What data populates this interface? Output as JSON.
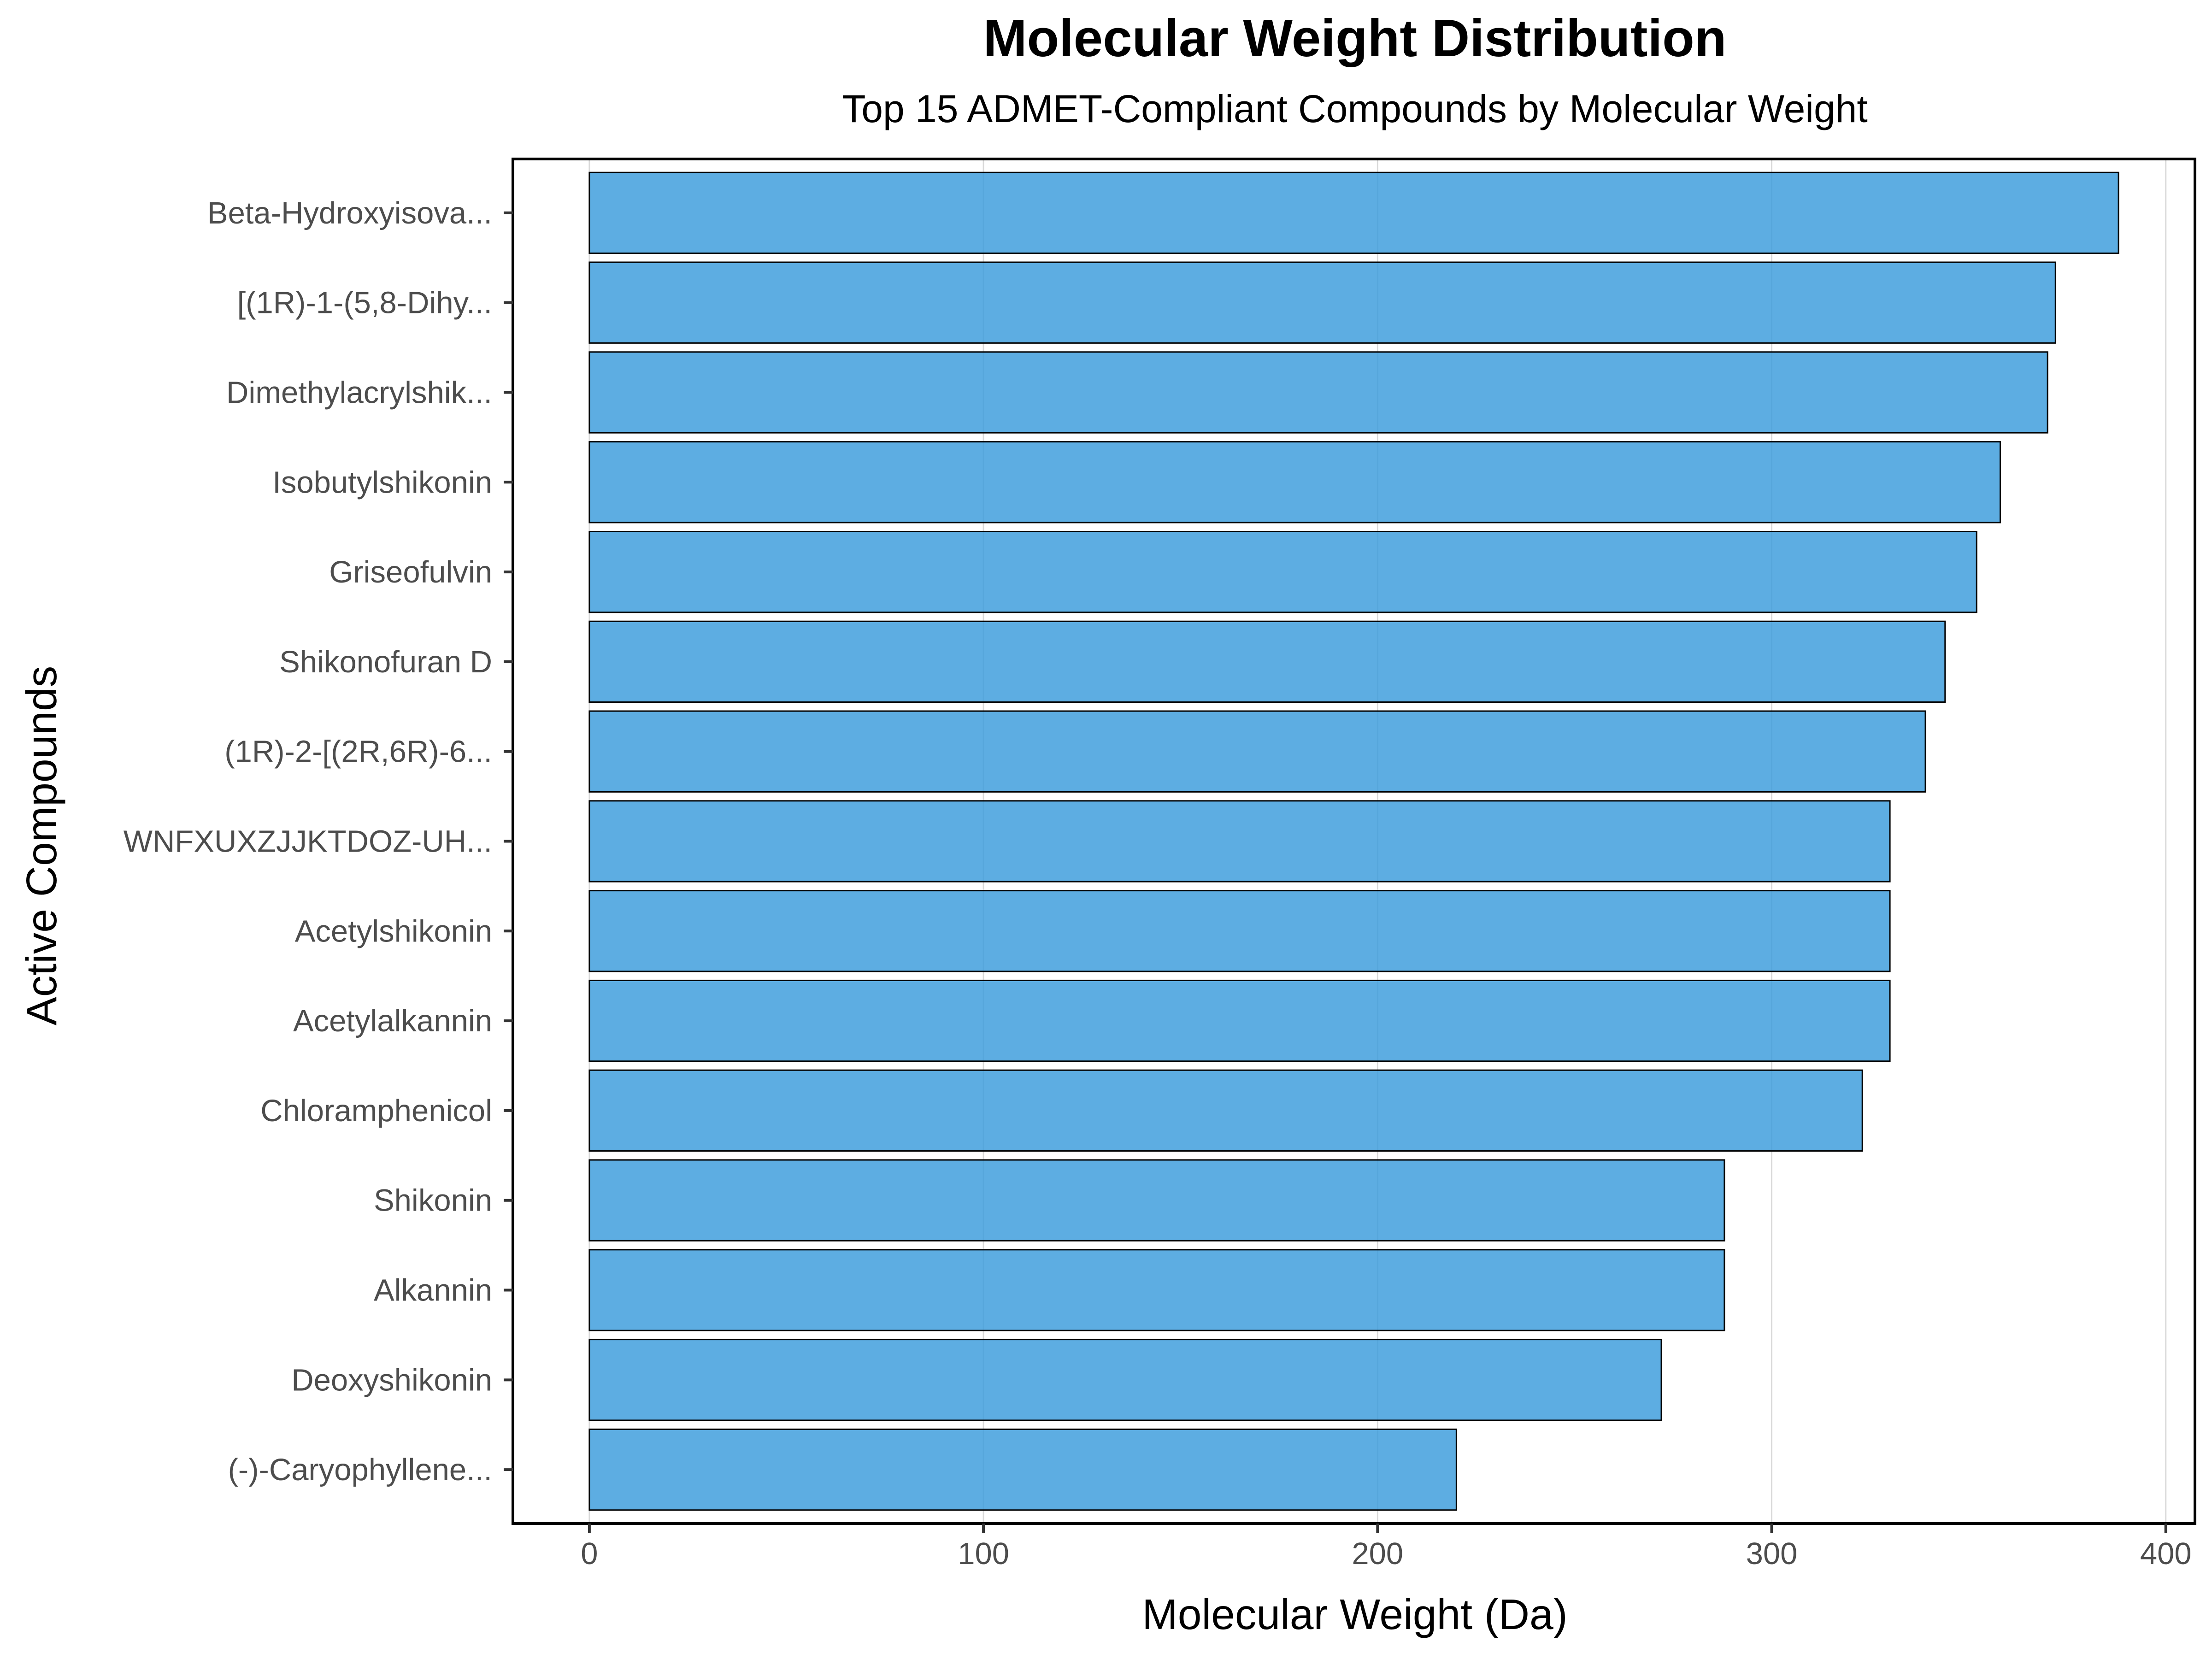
{
  "chart_data": {
    "type": "bar",
    "orientation": "horizontal",
    "title": "Molecular Weight Distribution",
    "subtitle": "Top 15 ADMET-Compliant Compounds by Molecular Weight",
    "xlabel": "Molecular Weight (Da)",
    "ylabel": "Active Compounds",
    "xlim": [
      -19.4,
      407.4
    ],
    "x_ticks": [
      0,
      100,
      200,
      300,
      400
    ],
    "grid": true,
    "legend": "none",
    "bar_color": "#3498db",
    "categories": [
      "Beta-Hydroxyisova...",
      "[(1R)-1-(5,8-Dihy...",
      "Dimethylacrylshik...",
      "Isobutylshikonin",
      "Griseofulvin",
      "Shikonofuran D",
      "(1R)-2-[(2R,6R)-6...",
      "WNFXUXZJJKTDOZ-UH...",
      "Acetylshikonin",
      "Acetylalkannin",
      "Chloramphenicol",
      "Shikonin",
      "Alkannin",
      "Deoxyshikonin",
      "(-)-Caryophyllene..."
    ],
    "values": [
      388,
      372,
      370,
      358,
      352,
      344,
      339,
      330,
      330,
      330,
      323,
      288,
      288,
      272,
      220
    ]
  }
}
